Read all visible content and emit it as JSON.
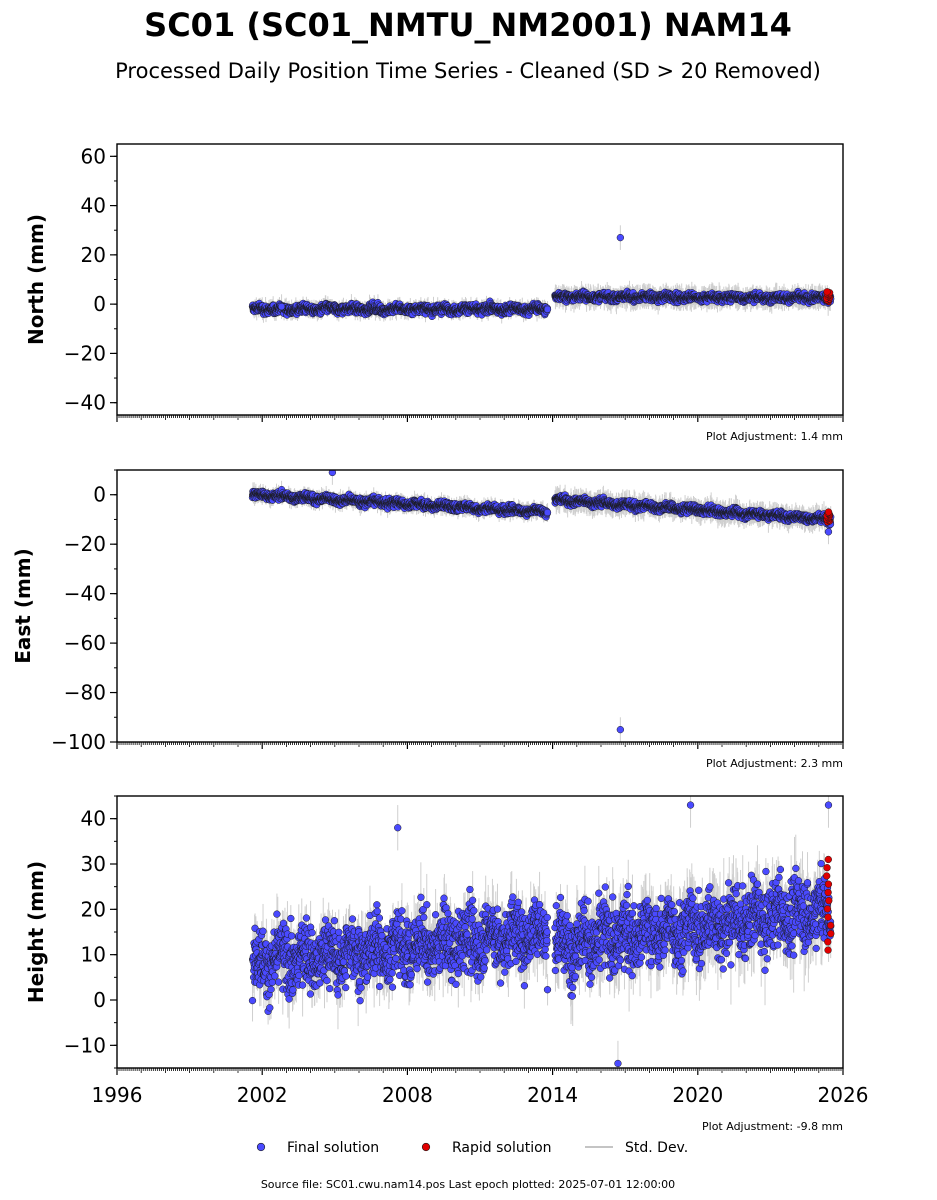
{
  "header": {
    "title": "SC01 (SC01_NMTU_NM2001) NAM14",
    "subtitle": "Processed Daily Position Time Series - Cleaned (SD > 20 Removed)"
  },
  "legend": {
    "final_label": "Final solution",
    "rapid_label": "Rapid solution",
    "std_label": "Std. Dev."
  },
  "footer": {
    "source": "Source file: SC01.cwu.nam14.pos  Last epoch plotted: 2025-07-01 12:00:00"
  },
  "colors": {
    "final": "#4a4aff",
    "rapid": "#e00000",
    "std": "#b0b0b0",
    "edge": "#1a1a1a"
  },
  "chart_data": [
    {
      "type": "scatter",
      "panel": "north",
      "ylabel": "North (mm)",
      "adjustment": "Plot Adjustment: 1.4 mm",
      "xlim": [
        1996,
        2026
      ],
      "ylim": [
        -45,
        65
      ],
      "yticks": [
        60,
        40,
        20,
        0,
        -20,
        -40
      ],
      "xticks": [
        1996,
        2002,
        2008,
        2014,
        2020,
        2026
      ],
      "show_xtick_labels": false,
      "segments": [
        {
          "x0": 2001.6,
          "x1": 2013.8,
          "y0": -2,
          "y1": -2,
          "wiggle": 2.0,
          "sd": 3
        },
        {
          "x0": 2014.1,
          "x1": 2025.5,
          "y0": 3,
          "y1": 2.5,
          "wiggle": 1.8,
          "sd": 4
        }
      ],
      "outliers": [
        {
          "x": 2016.8,
          "y": 27
        },
        {
          "x": 2002.8,
          "y": -1
        }
      ],
      "rapid": {
        "x0": 2025.2,
        "x1": 2025.5,
        "y0": 1,
        "y1": 5
      }
    },
    {
      "type": "scatter",
      "panel": "east",
      "ylabel": "East (mm)",
      "adjustment": "Plot Adjustment: 2.3 mm",
      "xlim": [
        1996,
        2026
      ],
      "ylim": [
        -100,
        10
      ],
      "yticks": [
        0,
        -20,
        -40,
        -60,
        -80,
        -100
      ],
      "xticks": [
        1996,
        2002,
        2008,
        2014,
        2020,
        2026
      ],
      "show_xtick_labels": false,
      "segments": [
        {
          "x0": 2001.6,
          "x1": 2013.8,
          "y0": 0,
          "y1": -7,
          "wiggle": 1.8,
          "sd": 3
        },
        {
          "x0": 2014.1,
          "x1": 2025.5,
          "y0": -2,
          "y1": -10,
          "wiggle": 1.8,
          "sd": 4
        }
      ],
      "outliers": [
        {
          "x": 2016.8,
          "y": -95
        },
        {
          "x": 2004.9,
          "y": 9
        },
        {
          "x": 2025.4,
          "y": -15
        }
      ],
      "rapid": {
        "x0": 2025.2,
        "x1": 2025.5,
        "y0": -11,
        "y1": -7
      }
    },
    {
      "type": "scatter",
      "panel": "height",
      "ylabel": "Height (mm)",
      "adjustment": "Plot Adjustment: -9.8 mm",
      "xlim": [
        1996,
        2026
      ],
      "ylim": [
        -15,
        45
      ],
      "yticks": [
        40,
        30,
        20,
        10,
        0,
        -10
      ],
      "xticks": [
        1996,
        2002,
        2008,
        2014,
        2020,
        2026
      ],
      "show_xtick_labels": true,
      "segments": [
        {
          "x0": 2001.6,
          "x1": 2013.8,
          "y0": 8,
          "y1": 15,
          "wiggle": 8.0,
          "sd": 6
        },
        {
          "x0": 2014.1,
          "x1": 2025.5,
          "y0": 12,
          "y1": 20,
          "wiggle": 8.5,
          "sd": 7
        }
      ],
      "outliers": [
        {
          "x": 2016.7,
          "y": -14
        },
        {
          "x": 2007.6,
          "y": 38
        },
        {
          "x": 2019.7,
          "y": 43
        },
        {
          "x": 2025.4,
          "y": 43
        }
      ],
      "rapid": {
        "x0": 2025.2,
        "x1": 2025.5,
        "y0": 11,
        "y1": 31
      }
    }
  ]
}
